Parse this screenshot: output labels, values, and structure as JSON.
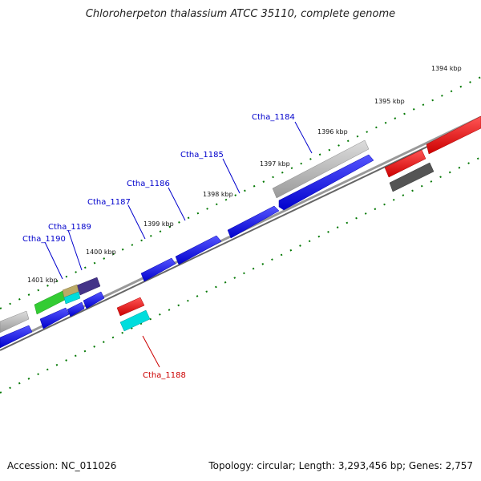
{
  "title": "Chloroherpeton thalassium ATCC 35110, complete genome",
  "footer": {
    "accession": "Accession: NC_011026",
    "summary": "Topology: circular; Length: 3,293,456 bp; Genes: 2,757"
  },
  "kbp_labels": [
    "1394 kbp",
    "1395 kbp",
    "1396 kbp",
    "1397 kbp",
    "1398 kbp",
    "1399 kbp",
    "1400 kbp",
    "1401 kbp"
  ],
  "gene_labels": {
    "ctha_1184": "Ctha_1184",
    "ctha_1185": "Ctha_1185",
    "ctha_1186": "Ctha_1186",
    "ctha_1187": "Ctha_1187",
    "ctha_1188": "Ctha_1188",
    "ctha_1189": "Ctha_1189",
    "ctha_1190": "Ctha_1190"
  },
  "colors": {
    "forward_gene": "#0000ee",
    "reverse_gene": "#ee0000",
    "label_blue": "#0000cc",
    "label_red": "#cc0000",
    "tick_green": "#007700",
    "backbone": "#777777",
    "grey_gene": "#bbbbbb",
    "dark_grey_gene": "#555555",
    "cyan_gene": "#00dddd",
    "green_gene": "#33cc33",
    "purple_gene": "#443388"
  }
}
